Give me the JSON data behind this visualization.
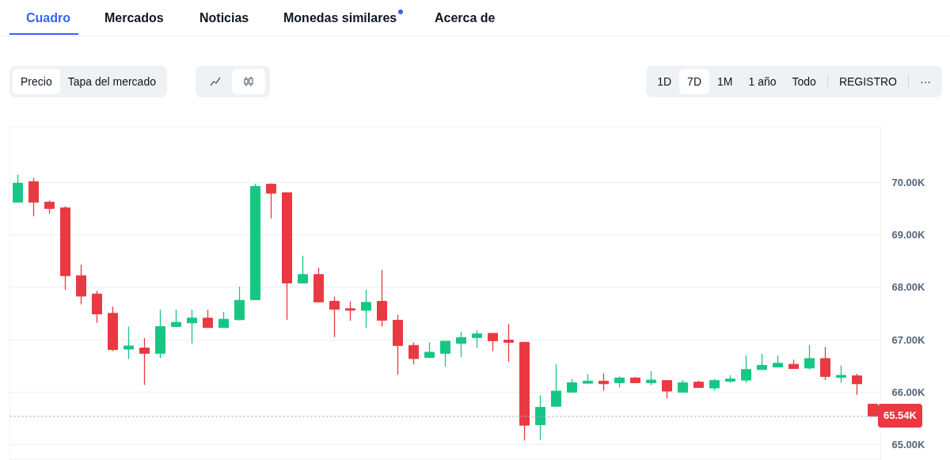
{
  "chart_data": {
    "type": "candlestick",
    "annotations": [
      "Cuadro",
      "Mercados",
      "Noticias",
      "Monedas similares",
      "Acerca de",
      "Precio",
      "Tapa del mercado",
      "1D",
      "7D",
      "1M",
      "1 año",
      "Todo",
      "REGISTRO",
      "···"
    ],
    "categories": [
      null,
      null,
      null,
      null,
      null,
      null,
      null,
      null,
      null,
      null,
      null,
      null,
      null,
      null,
      null,
      null,
      null,
      null,
      null,
      null,
      null,
      null,
      null,
      null,
      null,
      null,
      null,
      null,
      null,
      null,
      null,
      null,
      null,
      null,
      null,
      null,
      null,
      null,
      null,
      null,
      null,
      null,
      null,
      null,
      null,
      null,
      null,
      null,
      null,
      null,
      null,
      null,
      null,
      null,
      null
    ],
    "ohlc": [
      [
        69620,
        70140,
        69620,
        69980
      ],
      [
        70010,
        70080,
        69350,
        69620
      ],
      [
        69620,
        69650,
        69400,
        69500
      ],
      [
        69510,
        69540,
        67950,
        68220
      ],
      [
        68220,
        68430,
        67670,
        67830
      ],
      [
        67870,
        67930,
        67320,
        67490
      ],
      [
        67500,
        67630,
        66780,
        66810
      ],
      [
        66820,
        67250,
        66630,
        66880
      ],
      [
        66840,
        67030,
        66140,
        66740
      ],
      [
        66740,
        67570,
        66650,
        67250
      ],
      [
        67250,
        67570,
        67250,
        67330
      ],
      [
        67320,
        67570,
        66930,
        67410
      ],
      [
        67410,
        67570,
        67230,
        67230
      ],
      [
        67230,
        67530,
        67230,
        67390
      ],
      [
        67380,
        68010,
        67370,
        67750
      ],
      [
        67760,
        69970,
        67760,
        69920
      ],
      [
        69960,
        69980,
        69310,
        69790
      ],
      [
        69800,
        69800,
        67380,
        68080
      ],
      [
        68080,
        68600,
        68080,
        68240
      ],
      [
        68240,
        68370,
        67720,
        67720
      ],
      [
        67730,
        67820,
        67050,
        67580
      ],
      [
        67590,
        67730,
        67360,
        67560
      ],
      [
        67560,
        67950,
        67220,
        67710
      ],
      [
        67730,
        68330,
        67250,
        67370
      ],
      [
        67370,
        67470,
        66330,
        66890
      ],
      [
        66890,
        66950,
        66530,
        66640
      ],
      [
        66660,
        66950,
        66660,
        66760
      ],
      [
        66740,
        66970,
        66490,
        66970
      ],
      [
        66930,
        67150,
        66670,
        67040
      ],
      [
        67040,
        67180,
        66840,
        67110
      ],
      [
        67120,
        67120,
        66780,
        66980
      ],
      [
        66990,
        67300,
        66580,
        66950
      ],
      [
        66950,
        66950,
        65080,
        65370
      ],
      [
        65380,
        65940,
        65090,
        65710
      ],
      [
        65730,
        66530,
        65730,
        66020
      ],
      [
        66000,
        66250,
        66000,
        66180
      ],
      [
        66170,
        66340,
        66170,
        66210
      ],
      [
        66210,
        66360,
        66030,
        66160
      ],
      [
        66180,
        66300,
        66090,
        66270
      ],
      [
        66270,
        66290,
        66180,
        66180
      ],
      [
        66180,
        66400,
        66130,
        66230
      ],
      [
        66220,
        66220,
        65880,
        66020
      ],
      [
        66000,
        66230,
        66000,
        66180
      ],
      [
        66190,
        66220,
        66090,
        66090
      ],
      [
        66080,
        66250,
        66030,
        66220
      ],
      [
        66210,
        66320,
        66180,
        66250
      ],
      [
        66230,
        66700,
        66180,
        66430
      ],
      [
        66430,
        66730,
        66430,
        66510
      ],
      [
        66480,
        66700,
        66480,
        66550
      ],
      [
        66530,
        66620,
        66450,
        66450
      ],
      [
        66460,
        66900,
        66430,
        66640
      ],
      [
        66640,
        66860,
        66230,
        66300
      ],
      [
        66280,
        66510,
        66180,
        66320
      ],
      [
        66310,
        66350,
        65950,
        66160
      ],
      [
        65770,
        65770,
        65540,
        65540
      ]
    ],
    "colors": [
      "#16c784",
      "#ea3943",
      "#ea3943",
      "#ea3943",
      "#ea3943",
      "#ea3943",
      "#ea3943",
      "#16c784",
      "#ea3943",
      "#16c784",
      "#16c784",
      "#16c784",
      "#ea3943",
      "#16c784",
      "#16c784",
      "#16c784",
      "#ea3943",
      "#ea3943",
      "#16c784",
      "#ea3943",
      "#ea3943",
      "#ea3943",
      "#16c784",
      "#ea3943",
      "#ea3943",
      "#ea3943",
      "#16c784",
      "#16c784",
      "#16c784",
      "#16c784",
      "#ea3943",
      "#ea3943",
      "#ea3943",
      "#16c784",
      "#16c784",
      "#16c784",
      "#16c784",
      "#ea3943",
      "#16c784",
      "#ea3943",
      "#16c784",
      "#ea3943",
      "#16c784",
      "#ea3943",
      "#16c784",
      "#16c784",
      "#16c784",
      "#16c784",
      "#16c784",
      "#ea3943",
      "#16c784",
      "#ea3943",
      "#16c784",
      "#ea3943",
      "#ea3943"
    ],
    "ylim": [
      64700,
      71050
    ],
    "yticks": [
      {
        "value": 65000,
        "label": "65.00K"
      },
      {
        "value": 66000,
        "label": "66.00K"
      },
      {
        "value": 67000,
        "label": "67.00K"
      },
      {
        "value": 68000,
        "label": "68.00K"
      },
      {
        "value": 69000,
        "label": "69.00K"
      },
      {
        "value": 70000,
        "label": "70.00K"
      }
    ],
    "grid": "y",
    "tick_labels": "y",
    "ref_lines": [
      {
        "axis": "y",
        "value": 65540,
        "label": "65.54K",
        "line_style": "dotted"
      }
    ]
  }
}
